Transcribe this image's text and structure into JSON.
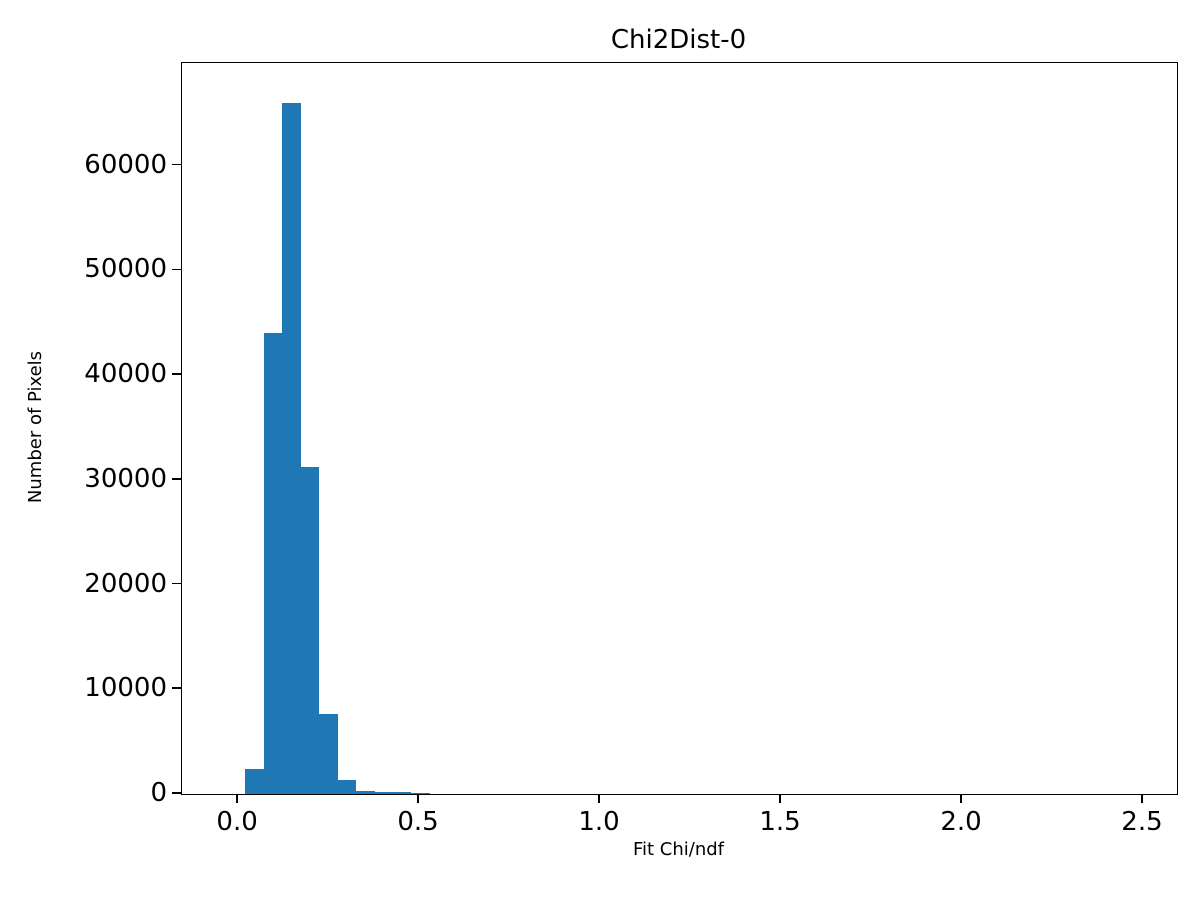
{
  "chart_data": {
    "type": "bar",
    "subtype": "histogram",
    "title": "Chi2Dist-0",
    "xlabel": "Fit Chi/ndf",
    "ylabel": "Number of Pixels",
    "bar_color": "#1f77b4",
    "grid": false,
    "legend": null,
    "bin_start": 0.02,
    "bin_width": 0.051,
    "counts": [
      2400,
      44000,
      66000,
      31200,
      7600,
      1300,
      300,
      230,
      150,
      80,
      40,
      15
    ],
    "xlim": [
      -0.155,
      2.594
    ],
    "ylim": [
      0,
      69800
    ],
    "xtick_values": [
      0.0,
      0.5,
      1.0,
      1.5,
      2.0,
      2.5
    ],
    "xtick_labels": [
      "0.0",
      "0.5",
      "1.0",
      "1.5",
      "2.0",
      "2.5"
    ],
    "ytick_values": [
      0,
      10000,
      20000,
      30000,
      40000,
      50000,
      60000
    ],
    "ytick_labels": [
      "0",
      "10000",
      "20000",
      "30000",
      "40000",
      "50000",
      "60000"
    ]
  }
}
